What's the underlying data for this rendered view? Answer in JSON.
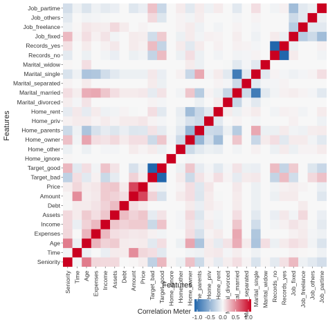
{
  "chart_data": {
    "type": "heatmap",
    "title": "",
    "xlabel": "Features",
    "ylabel": "Features",
    "features": [
      "Seniority",
      "Time",
      "Age",
      "Expenses",
      "Income",
      "Assets",
      "Debt",
      "Amount",
      "Price",
      "Target_bad",
      "Target_good",
      "Home_ignore",
      "Home_other",
      "Home_owner",
      "Home_parents",
      "Home_priv",
      "Home_rent",
      "Marital_divorced",
      "Marital_married",
      "Marital_separated",
      "Marital_single",
      "Marital_widow",
      "Records_no",
      "Records_yes",
      "Job_fixed",
      "Job_freelance",
      "Job_others",
      "Job_partime"
    ],
    "color_scale": {
      "low": "#2166ac",
      "mid": "#f7f7f7",
      "high": "#ca0020",
      "range": [
        -1,
        1
      ]
    },
    "legend": {
      "title": "Correlation Meter",
      "ticks": [
        "-1.0",
        "-0.5",
        "0.0",
        "0.5",
        "1.0"
      ],
      "tick_values": [
        -1,
        -0.5,
        0,
        0.5,
        1
      ],
      "placement": "bottom"
    },
    "values": [
      [
        1,
        -0.02,
        0.5,
        0.13,
        0.12,
        0.12,
        0,
        0.01,
        0.04,
        -0.26,
        0.26,
        0.01,
        -0.05,
        0.22,
        -0.2,
        0.03,
        -0.08,
        0.04,
        0.1,
        0.02,
        -0.14,
        0.01,
        -0.09,
        0.09,
        0.25,
        -0.04,
        -0.1,
        -0.17
      ],
      [
        -0.02,
        1,
        -0.05,
        0,
        -0.06,
        0.05,
        0.05,
        0.43,
        0.13,
        0.1,
        -0.1,
        0,
        0,
        -0.03,
        -0.04,
        0.05,
        0.06,
        -0.02,
        0.04,
        0,
        -0.04,
        0,
        0,
        0,
        0.02,
        0.01,
        0,
        -0.04
      ],
      [
        0.5,
        -0.05,
        1,
        0.27,
        0.15,
        0.18,
        0.05,
        0.04,
        0.05,
        -0.1,
        0.1,
        0,
        -0.05,
        0.33,
        -0.35,
        0.05,
        -0.08,
        0.08,
        0.3,
        0.05,
        -0.35,
        0.1,
        -0.05,
        0.05,
        0.1,
        0.07,
        -0.03,
        -0.13
      ],
      [
        0.13,
        0,
        0.27,
        1,
        0.25,
        0.1,
        0.08,
        0.06,
        0.07,
        0.03,
        -0.03,
        0,
        0,
        0.1,
        -0.15,
        0.02,
        0.05,
        0,
        0.32,
        0,
        -0.33,
        0,
        0,
        0,
        0.03,
        0.05,
        -0.02,
        -0.04
      ],
      [
        0.12,
        -0.06,
        0.15,
        0.25,
        1,
        0.2,
        0.15,
        0.18,
        0.18,
        -0.21,
        0.21,
        0,
        -0.02,
        0.08,
        -0.08,
        0.05,
        -0.04,
        0,
        0.2,
        0,
        -0.18,
        0,
        -0.03,
        0.03,
        0.08,
        0.04,
        -0.01,
        -0.09
      ],
      [
        0.12,
        0.05,
        0.18,
        0.1,
        0.2,
        1,
        0.24,
        0.15,
        0.2,
        -0.08,
        0.08,
        0,
        -0.02,
        0.12,
        -0.12,
        0.02,
        -0.03,
        0,
        0.1,
        0,
        -0.1,
        0,
        -0.06,
        0.06,
        -0.03,
        0.12,
        0,
        -0.06
      ],
      [
        0,
        0.05,
        0.05,
        0.08,
        0.15,
        0.24,
        1,
        0.1,
        0.05,
        0,
        0,
        0,
        0,
        0.05,
        -0.06,
        0.05,
        0.02,
        0,
        0.05,
        0,
        -0.05,
        0,
        0,
        0,
        0,
        0.05,
        0,
        0
      ],
      [
        0.01,
        0.43,
        0.04,
        0.06,
        0.18,
        0.15,
        0.1,
        1,
        0.72,
        0.15,
        -0.15,
        0,
        0.05,
        0.1,
        -0.12,
        0.05,
        -0.01,
        0,
        0.05,
        0,
        -0.05,
        0,
        -0.05,
        0.05,
        0.05,
        0,
        0,
        -0.11
      ],
      [
        0.04,
        0.13,
        0.05,
        0.07,
        0.18,
        0.2,
        0.05,
        0.72,
        1,
        0.04,
        -0.04,
        0,
        0.02,
        0.1,
        -0.11,
        0.07,
        0,
        0,
        0.06,
        0,
        -0.05,
        0,
        -0.03,
        0.03,
        0.04,
        0.02,
        0,
        -0.06
      ],
      [
        -0.26,
        0.1,
        -0.1,
        0.03,
        -0.21,
        -0.08,
        0,
        0.15,
        0.04,
        1,
        -1,
        0,
        0.05,
        -0.2,
        0.08,
        0.02,
        0.1,
        0.02,
        -0.08,
        0.05,
        0.06,
        0,
        -0.24,
        0.24,
        -0.18,
        0,
        0.12,
        0.22
      ],
      [
        0.26,
        -0.1,
        0.1,
        -0.03,
        0.21,
        0.08,
        0,
        -0.15,
        -0.04,
        -1,
        1,
        0,
        -0.05,
        0.2,
        -0.08,
        -0.02,
        -0.1,
        -0.02,
        0.08,
        -0.05,
        -0.06,
        0,
        0.24,
        -0.24,
        0.18,
        0,
        -0.12,
        -0.22
      ],
      [
        0.01,
        0,
        0,
        0,
        0,
        0,
        0,
        0,
        0,
        0,
        0,
        1,
        0,
        -0.02,
        -0.01,
        0,
        0,
        0,
        0,
        0,
        0,
        0,
        0,
        0,
        0,
        0,
        0,
        0
      ],
      [
        -0.05,
        0,
        -0.05,
        0,
        -0.02,
        -0.02,
        0,
        0.05,
        0.02,
        0.05,
        -0.05,
        0,
        1,
        -0.2,
        -0.1,
        -0.05,
        -0.07,
        0,
        -0.03,
        0,
        0.03,
        0,
        -0.05,
        0.05,
        -0.05,
        0.02,
        0.02,
        0.05
      ],
      [
        0.22,
        -0.03,
        0.33,
        0.1,
        0.08,
        0.12,
        0.05,
        0.1,
        0.1,
        -0.2,
        0.2,
        -0.02,
        -0.2,
        1,
        -0.45,
        -0.15,
        -0.4,
        0,
        0.2,
        0,
        -0.22,
        0.05,
        0.1,
        -0.1,
        0.05,
        0.05,
        -0.03,
        -0.1
      ],
      [
        -0.2,
        -0.04,
        -0.35,
        -0.15,
        -0.08,
        -0.12,
        -0.06,
        -0.12,
        -0.11,
        0.08,
        -0.08,
        -0.01,
        -0.1,
        -0.45,
        1,
        -0.2,
        -0.22,
        -0.05,
        -0.3,
        0,
        0.32,
        -0.05,
        -0.05,
        0.05,
        -0.03,
        -0.04,
        0.04,
        0.05
      ],
      [
        0.03,
        0.05,
        0.05,
        0.02,
        0.05,
        0.02,
        0.05,
        0.05,
        0.07,
        0.02,
        -0.02,
        0,
        -0.05,
        -0.15,
        -0.2,
        1,
        -0.1,
        0,
        0.02,
        0,
        -0.02,
        0,
        0,
        0,
        0.03,
        0,
        0,
        -0.04
      ],
      [
        -0.08,
        0.06,
        -0.08,
        0.05,
        -0.04,
        -0.03,
        0.02,
        -0.01,
        0,
        0.1,
        -0.1,
        0,
        -0.07,
        -0.4,
        -0.22,
        -0.1,
        1,
        0.05,
        -0.05,
        0.02,
        0.05,
        0,
        -0.03,
        0.03,
        0.02,
        -0.03,
        0,
        0.05
      ],
      [
        0.04,
        -0.02,
        0.08,
        0,
        0,
        0,
        0,
        0,
        0,
        0.02,
        -0.02,
        0,
        0,
        0,
        -0.05,
        0,
        0.05,
        1,
        -0.23,
        -0.02,
        -0.1,
        -0.01,
        0,
        0,
        0,
        0,
        0,
        0
      ],
      [
        0.1,
        0.04,
        0.3,
        0.32,
        0.2,
        0.1,
        0.05,
        0.05,
        0.06,
        -0.08,
        0.08,
        0,
        -0.03,
        0.2,
        -0.3,
        0.02,
        -0.05,
        -0.23,
        1,
        -0.2,
        -0.85,
        -0.1,
        -0.03,
        0.03,
        0.04,
        0.02,
        -0.02,
        -0.1
      ],
      [
        0.02,
        0,
        0.05,
        0,
        0,
        0,
        0,
        0,
        0,
        0.05,
        -0.05,
        0,
        0,
        0,
        0,
        0,
        0.02,
        -0.02,
        -0.2,
        1,
        -0.1,
        -0.02,
        -0.02,
        0.02,
        0,
        0,
        0,
        0
      ],
      [
        -0.14,
        -0.04,
        -0.35,
        -0.33,
        -0.18,
        -0.1,
        -0.05,
        -0.05,
        -0.05,
        0.06,
        -0.06,
        0,
        0.03,
        -0.22,
        0.32,
        -0.02,
        0.05,
        -0.1,
        -0.85,
        -0.1,
        1,
        -0.1,
        0.02,
        -0.02,
        -0.04,
        -0.02,
        0.02,
        0.1
      ],
      [
        0.01,
        0,
        0.1,
        0,
        0,
        0,
        0,
        0,
        0,
        0,
        0,
        0,
        0,
        0.05,
        -0.05,
        0,
        0,
        -0.01,
        -0.1,
        -0.02,
        -0.1,
        1,
        0,
        0,
        0,
        0,
        0,
        0
      ],
      [
        -0.09,
        0,
        -0.05,
        0,
        -0.03,
        -0.06,
        0,
        -0.05,
        -0.03,
        -0.24,
        0.24,
        0,
        -0.05,
        0.1,
        -0.05,
        0,
        -0.03,
        0,
        -0.03,
        -0.02,
        0.02,
        0,
        1,
        -1,
        0.05,
        0,
        0,
        -0.03
      ],
      [
        0.09,
        0,
        0.05,
        0,
        0.03,
        0.06,
        0,
        0.05,
        0.03,
        0.24,
        -0.24,
        0,
        0.05,
        -0.1,
        0.05,
        0,
        0.03,
        0,
        0.03,
        0.02,
        -0.02,
        0,
        -1,
        1,
        -0.05,
        0,
        0,
        0.03
      ],
      [
        0.25,
        0.02,
        0.1,
        0.03,
        0.08,
        -0.03,
        0,
        0.05,
        0.04,
        -0.18,
        0.18,
        0,
        -0.05,
        0.05,
        -0.03,
        0.03,
        0.02,
        0,
        0.04,
        0,
        -0.04,
        0,
        0.05,
        -0.05,
        1,
        -0.3,
        -0.2,
        -0.4
      ],
      [
        -0.04,
        0.01,
        0.07,
        0.05,
        0.04,
        0.12,
        0.05,
        0,
        0.02,
        0,
        0,
        0,
        0.02,
        0.05,
        -0.04,
        0,
        -0.03,
        0,
        0.02,
        0,
        -0.02,
        0,
        0,
        0,
        -0.3,
        1,
        -0.1,
        -0.1
      ],
      [
        -0.1,
        0,
        -0.03,
        -0.02,
        -0.01,
        0,
        0,
        0,
        0,
        0.12,
        -0.12,
        0,
        0.02,
        -0.03,
        0.04,
        0,
        0,
        0,
        -0.02,
        0,
        0.02,
        0,
        0,
        0,
        -0.2,
        -0.1,
        1,
        -0.05
      ],
      [
        -0.17,
        -0.04,
        -0.13,
        -0.04,
        -0.09,
        -0.06,
        0,
        -0.11,
        -0.06,
        0.22,
        -0.22,
        0,
        0.05,
        -0.1,
        0.05,
        -0.04,
        0.05,
        0,
        -0.1,
        0,
        0.1,
        0,
        -0.03,
        0.03,
        -0.4,
        -0.1,
        -0.05,
        1
      ]
    ]
  }
}
